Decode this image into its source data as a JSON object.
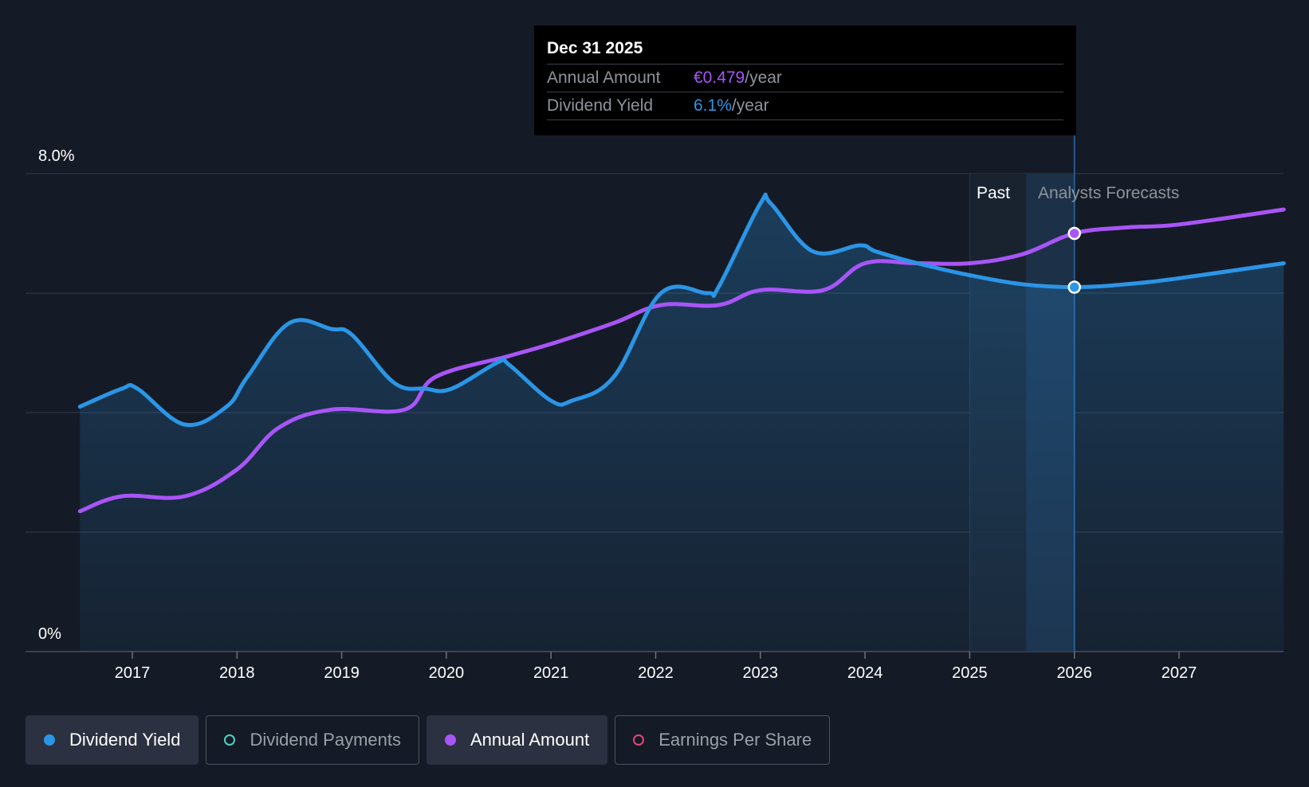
{
  "tooltip": {
    "date": "Dec 31 2025",
    "rows": [
      {
        "label": "Annual Amount",
        "value": "€0.479",
        "unit": "/year"
      },
      {
        "label": "Dividend Yield",
        "value": "6.1%",
        "unit": "/year"
      }
    ]
  },
  "regions": {
    "past": "Past",
    "forecast": "Analysts Forecasts"
  },
  "legend": [
    {
      "label": "Dividend Yield",
      "color": "#2b95e6",
      "active": true,
      "filled": true
    },
    {
      "label": "Dividend Payments",
      "color": "#4fd1c5",
      "active": false,
      "filled": false
    },
    {
      "label": "Annual Amount",
      "color": "#a855f7",
      "active": true,
      "filled": true
    },
    {
      "label": "Earnings Per Share",
      "color": "#e0457b",
      "active": false,
      "filled": false
    }
  ],
  "colors": {
    "yield": "#2b95e6",
    "amount": "#a855f7",
    "background": "#151b26"
  },
  "chart_data": {
    "type": "line",
    "title": "",
    "ylim": [
      0,
      8
    ],
    "y_tick_labels": [
      "0%",
      "8.0%"
    ],
    "gridlines": [
      0,
      2,
      4,
      6,
      8
    ],
    "x_tick_labels": [
      "2017",
      "2018",
      "2019",
      "2020",
      "2021",
      "2022",
      "2023",
      "2024",
      "2025",
      "2026",
      "2027"
    ],
    "x_range": [
      2016.5,
      2028.0
    ],
    "past_end": 2026.0,
    "forecast_band_start": 2025.0,
    "forecast_band_highlight": 2025.54,
    "highlight_x": 2026.0,
    "series": [
      {
        "name": "Dividend Yield",
        "key": "yield",
        "points": [
          [
            2016.5,
            4.1
          ],
          [
            2016.9,
            4.4
          ],
          [
            2017.05,
            4.4
          ],
          [
            2017.5,
            3.8
          ],
          [
            2017.9,
            4.1
          ],
          [
            2018.1,
            4.6
          ],
          [
            2018.5,
            5.5
          ],
          [
            2018.9,
            5.4
          ],
          [
            2019.1,
            5.3
          ],
          [
            2019.5,
            4.5
          ],
          [
            2019.8,
            4.4
          ],
          [
            2020.05,
            4.4
          ],
          [
            2020.5,
            4.85
          ],
          [
            2020.6,
            4.8
          ],
          [
            2021.0,
            4.2
          ],
          [
            2021.2,
            4.2
          ],
          [
            2021.6,
            4.6
          ],
          [
            2022.05,
            6.0
          ],
          [
            2022.5,
            6.0
          ],
          [
            2022.6,
            6.1
          ],
          [
            2023.0,
            7.5
          ],
          [
            2023.1,
            7.5
          ],
          [
            2023.5,
            6.7
          ],
          [
            2023.95,
            6.8
          ],
          [
            2024.1,
            6.7
          ],
          [
            2024.5,
            6.5
          ],
          [
            2025.0,
            6.3
          ],
          [
            2025.5,
            6.15
          ],
          [
            2026.0,
            6.1
          ],
          [
            2026.5,
            6.15
          ],
          [
            2027.0,
            6.25
          ],
          [
            2028.0,
            6.5
          ]
        ]
      },
      {
        "name": "Annual Amount",
        "key": "amount",
        "points": [
          [
            2016.5,
            2.35
          ],
          [
            2016.9,
            2.6
          ],
          [
            2017.5,
            2.6
          ],
          [
            2018.0,
            3.05
          ],
          [
            2018.4,
            3.75
          ],
          [
            2018.9,
            4.05
          ],
          [
            2019.6,
            4.05
          ],
          [
            2019.9,
            4.6
          ],
          [
            2020.6,
            4.95
          ],
          [
            2021.0,
            5.15
          ],
          [
            2021.6,
            5.5
          ],
          [
            2022.05,
            5.8
          ],
          [
            2022.6,
            5.8
          ],
          [
            2023.0,
            6.05
          ],
          [
            2023.6,
            6.05
          ],
          [
            2024.0,
            6.5
          ],
          [
            2024.5,
            6.5
          ],
          [
            2025.0,
            6.5
          ],
          [
            2025.5,
            6.65
          ],
          [
            2026.0,
            7.0
          ],
          [
            2026.5,
            7.1
          ],
          [
            2027.0,
            7.15
          ],
          [
            2028.0,
            7.4
          ]
        ]
      }
    ]
  }
}
